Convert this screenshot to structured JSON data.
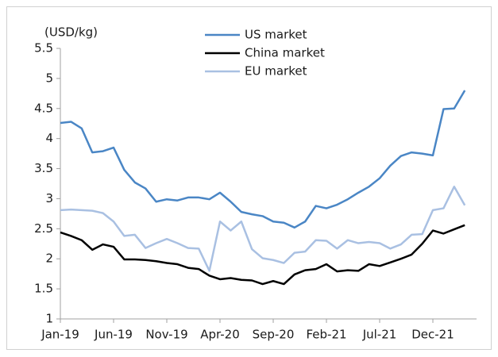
{
  "chart_data": {
    "type": "line",
    "y_label": "(USD/kg)",
    "categories": [
      "Jan-19",
      null,
      null,
      null,
      null,
      "Jun-19",
      null,
      null,
      null,
      null,
      "Nov-19",
      null,
      null,
      null,
      null,
      "Apr-20",
      null,
      null,
      null,
      null,
      "Sep-20",
      null,
      null,
      null,
      null,
      "Feb-21",
      null,
      null,
      null,
      null,
      "Jul-21",
      null,
      null,
      null,
      null,
      "Dec-21",
      null,
      null,
      null
    ],
    "series": [
      {
        "name": "US market",
        "color": "#4a86c5",
        "values": [
          4.26,
          4.28,
          4.17,
          3.77,
          3.79,
          3.85,
          3.48,
          3.27,
          3.17,
          2.95,
          2.99,
          2.97,
          3.02,
          3.02,
          2.99,
          3.1,
          2.95,
          2.78,
          2.74,
          2.71,
          2.62,
          2.6,
          2.52,
          2.62,
          2.88,
          2.84,
          2.9,
          2.99,
          3.1,
          3.2,
          3.34,
          3.55,
          3.71,
          3.77,
          3.75,
          3.72,
          4.49,
          4.5,
          4.8
        ]
      },
      {
        "name": "China market",
        "color": "#000000",
        "values": [
          2.44,
          2.38,
          2.31,
          2.15,
          2.24,
          2.2,
          1.99,
          1.99,
          1.98,
          1.96,
          1.93,
          1.91,
          1.85,
          1.83,
          1.72,
          1.66,
          1.68,
          1.65,
          1.64,
          1.58,
          1.63,
          1.58,
          1.74,
          1.81,
          1.83,
          1.91,
          1.79,
          1.81,
          1.8,
          1.91,
          1.88,
          1.94,
          2.0,
          2.07,
          2.25,
          2.47,
          2.42,
          2.49,
          2.56
        ]
      },
      {
        "name": "EU market",
        "color": "#a9c0e2",
        "values": [
          2.81,
          2.82,
          2.81,
          2.8,
          2.76,
          2.62,
          2.38,
          2.4,
          2.18,
          2.26,
          2.33,
          2.26,
          2.18,
          2.17,
          1.8,
          2.62,
          2.47,
          2.62,
          2.16,
          2.01,
          1.98,
          1.93,
          2.1,
          2.12,
          2.31,
          2.3,
          2.17,
          2.31,
          2.26,
          2.28,
          2.26,
          2.17,
          2.24,
          2.4,
          2.41,
          2.81,
          2.84,
          3.2,
          2.89
        ]
      }
    ],
    "ylim": [
      1,
      5.5
    ],
    "yticks": [
      1,
      1.5,
      2,
      2.5,
      3,
      3.5,
      4,
      4.5,
      5,
      5.5
    ]
  }
}
